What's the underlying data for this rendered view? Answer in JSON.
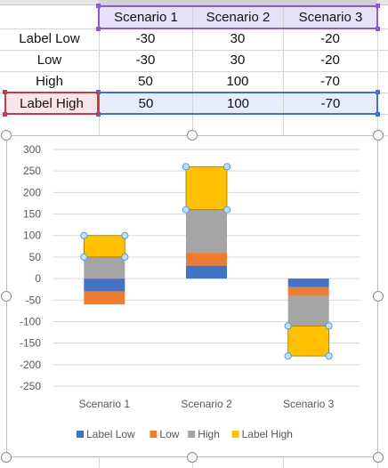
{
  "sheet": {
    "headers": [
      "Scenario 1",
      "Scenario 2",
      "Scenario 3"
    ],
    "rows": [
      {
        "label": "Label Low",
        "values": [
          "-30",
          "30",
          "-20"
        ]
      },
      {
        "label": "Low",
        "values": [
          "-30",
          "30",
          "-20"
        ]
      },
      {
        "label": "High",
        "values": [
          "50",
          "100",
          "-70"
        ]
      },
      {
        "label": "Label High",
        "values": [
          "50",
          "100",
          "-70"
        ]
      }
    ]
  },
  "colors": {
    "label_low": "#4472C4",
    "low": "#ED7D31",
    "high": "#A5A5A5",
    "label_high": "#FFC000",
    "grid": "#d9d9d9",
    "axis_text": "#595959",
    "handle": "#5b9bd5"
  },
  "chart_data": {
    "type": "bar",
    "stacked": true,
    "categories": [
      "Scenario 1",
      "Scenario 2",
      "Scenario 3"
    ],
    "series": [
      {
        "name": "Label Low",
        "key": "label_low",
        "values": [
          -30,
          30,
          -20
        ]
      },
      {
        "name": "Low",
        "key": "low",
        "values": [
          -30,
          30,
          -20
        ]
      },
      {
        "name": "High",
        "key": "high",
        "values": [
          50,
          100,
          -70
        ]
      },
      {
        "name": "Label High",
        "key": "label_high",
        "values": [
          50,
          100,
          -70
        ]
      }
    ],
    "ylim": [
      -250,
      300
    ],
    "yticks": [
      "300",
      "250",
      "200",
      "150",
      "100",
      "50",
      "0",
      "-50",
      "-100",
      "-150",
      "-200",
      "-250"
    ],
    "selected_series": "Label High",
    "grid": true,
    "legend_position": "bottom",
    "title": "",
    "xlabel": "",
    "ylabel": ""
  }
}
